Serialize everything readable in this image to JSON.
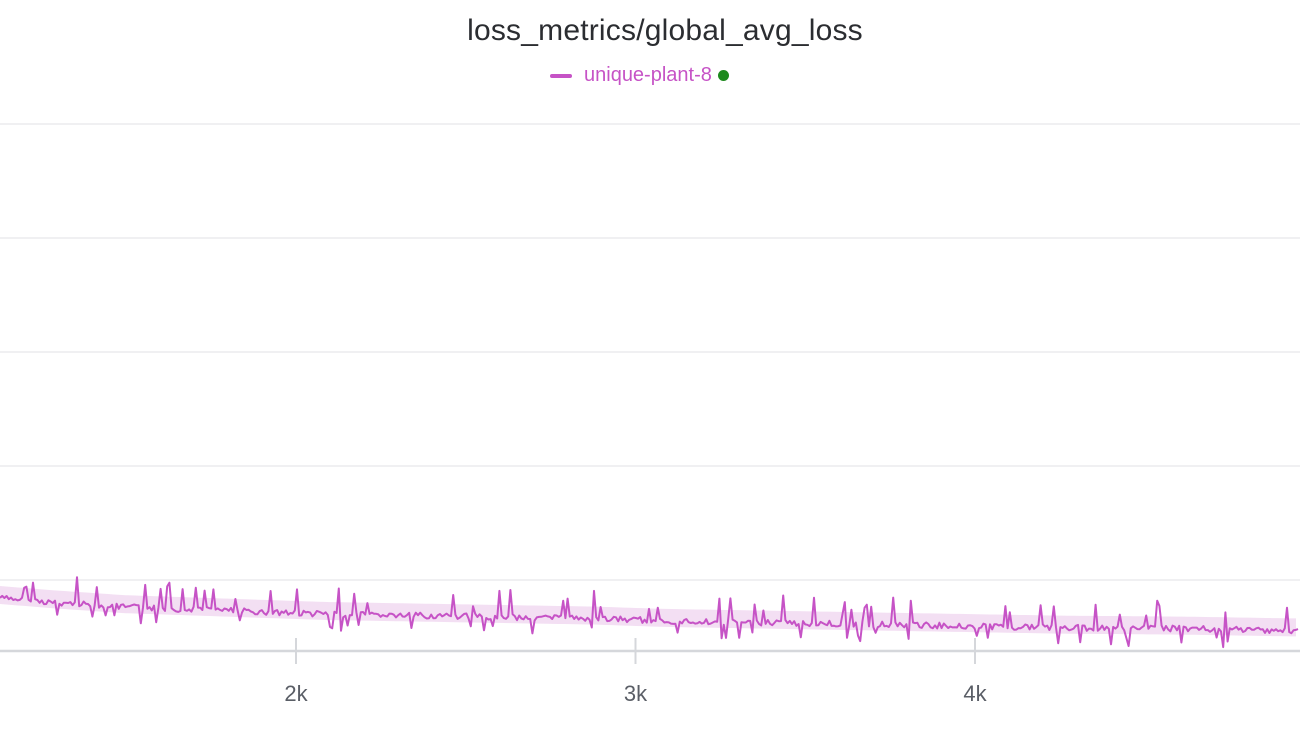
{
  "chart_data": {
    "type": "line",
    "title": "loss_metrics/global_avg_loss",
    "xlabel": "",
    "ylabel": "",
    "grid": true,
    "legend_placement": "top-center",
    "x_visible_range": [
      1130,
      5000
    ],
    "x_ticks": [
      2000,
      3000,
      4000
    ],
    "x_tick_labels": [
      "2k",
      "3k",
      "4k"
    ],
    "series": [
      {
        "name": "unique-plant-8",
        "color": "#c653c6",
        "band_color": "#f1d9f1",
        "status_color": "#1e8a1e",
        "x": [
          1130,
          1300,
          1500,
          1700,
          1900,
          2100,
          2300,
          2500,
          2700,
          2900,
          3100,
          3300,
          3500,
          3700,
          3900,
          4100,
          4300,
          4500,
          4700,
          4900,
          5000
        ],
        "y": [
          0.62,
          0.6,
          0.58,
          0.57,
          0.56,
          0.55,
          0.545,
          0.54,
          0.535,
          0.53,
          0.52,
          0.515,
          0.51,
          0.505,
          0.5,
          0.495,
          0.49,
          0.488,
          0.485,
          0.48,
          0.478
        ]
      }
    ]
  }
}
